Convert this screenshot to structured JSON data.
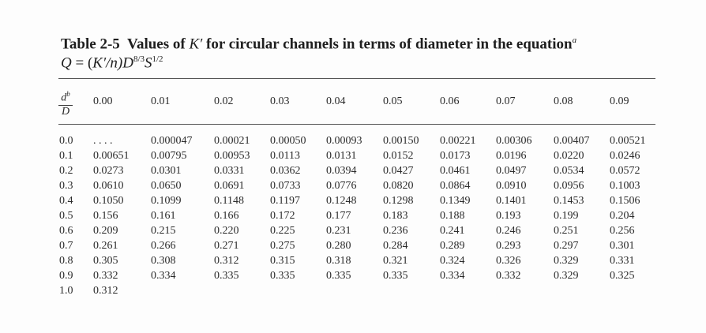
{
  "caption": {
    "title_prefix": "Table 2-5",
    "title_main": "Values of ",
    "title_var": "K′",
    "title_rest": " for circular channels in terms of diameter in the equation",
    "title_sup": "a",
    "equation_lhs": "Q",
    "equation_eq": " = (",
    "equation_mid": "K′/n)D",
    "equation_exp1": "8/3",
    "equation_S": "S",
    "equation_exp2": "1/2"
  },
  "header": {
    "frac_num": "d",
    "frac_sup": "b",
    "frac_den": "D",
    "columns": [
      "0.00",
      "0.01",
      "0.02",
      "0.03",
      "0.04",
      "0.05",
      "0.06",
      "0.07",
      "0.08",
      "0.09"
    ]
  },
  "table": {
    "rows": [
      {
        "label": "0.0",
        "values": [
          ". . . .",
          "0.000047",
          "0.00021",
          "0.00050",
          "0.00093",
          "0.00150",
          "0.00221",
          "0.00306",
          "0.00407",
          "0.00521"
        ]
      },
      {
        "label": "0.1",
        "values": [
          "0.00651",
          "0.00795",
          "0.00953",
          "0.0113",
          "0.0131",
          "0.0152",
          "0.0173",
          "0.0196",
          "0.0220",
          "0.0246"
        ]
      },
      {
        "label": "0.2",
        "values": [
          "0.0273",
          "0.0301",
          "0.0331",
          "0.0362",
          "0.0394",
          "0.0427",
          "0.0461",
          "0.0497",
          "0.0534",
          "0.0572"
        ]
      },
      {
        "label": "0.3",
        "values": [
          "0.0610",
          "0.0650",
          "0.0691",
          "0.0733",
          "0.0776",
          "0.0820",
          "0.0864",
          "0.0910",
          "0.0956",
          "0.1003"
        ]
      },
      {
        "label": "0.4",
        "values": [
          "0.1050",
          "0.1099",
          "0.1148",
          "0.1197",
          "0.1248",
          "0.1298",
          "0.1349",
          "0.1401",
          "0.1453",
          "0.1506"
        ]
      },
      {
        "label": "0.5",
        "values": [
          "0.156",
          "0.161",
          "0.166",
          "0.172",
          "0.177",
          "0.183",
          "0.188",
          "0.193",
          "0.199",
          "0.204"
        ]
      },
      {
        "label": "0.6",
        "values": [
          "0.209",
          "0.215",
          "0.220",
          "0.225",
          "0.231",
          "0.236",
          "0.241",
          "0.246",
          "0.251",
          "0.256"
        ]
      },
      {
        "label": "0.7",
        "values": [
          "0.261",
          "0.266",
          "0.271",
          "0.275",
          "0.280",
          "0.284",
          "0.289",
          "0.293",
          "0.297",
          "0.301"
        ]
      },
      {
        "label": "0.8",
        "values": [
          "0.305",
          "0.308",
          "0.312",
          "0.315",
          "0.318",
          "0.321",
          "0.324",
          "0.326",
          "0.329",
          "0.331"
        ]
      },
      {
        "label": "0.9",
        "values": [
          "0.332",
          "0.334",
          "0.335",
          "0.335",
          "0.335",
          "0.335",
          "0.334",
          "0.332",
          "0.329",
          "0.325"
        ]
      },
      {
        "label": "1.0",
        "values": [
          "0.312"
        ]
      }
    ]
  }
}
